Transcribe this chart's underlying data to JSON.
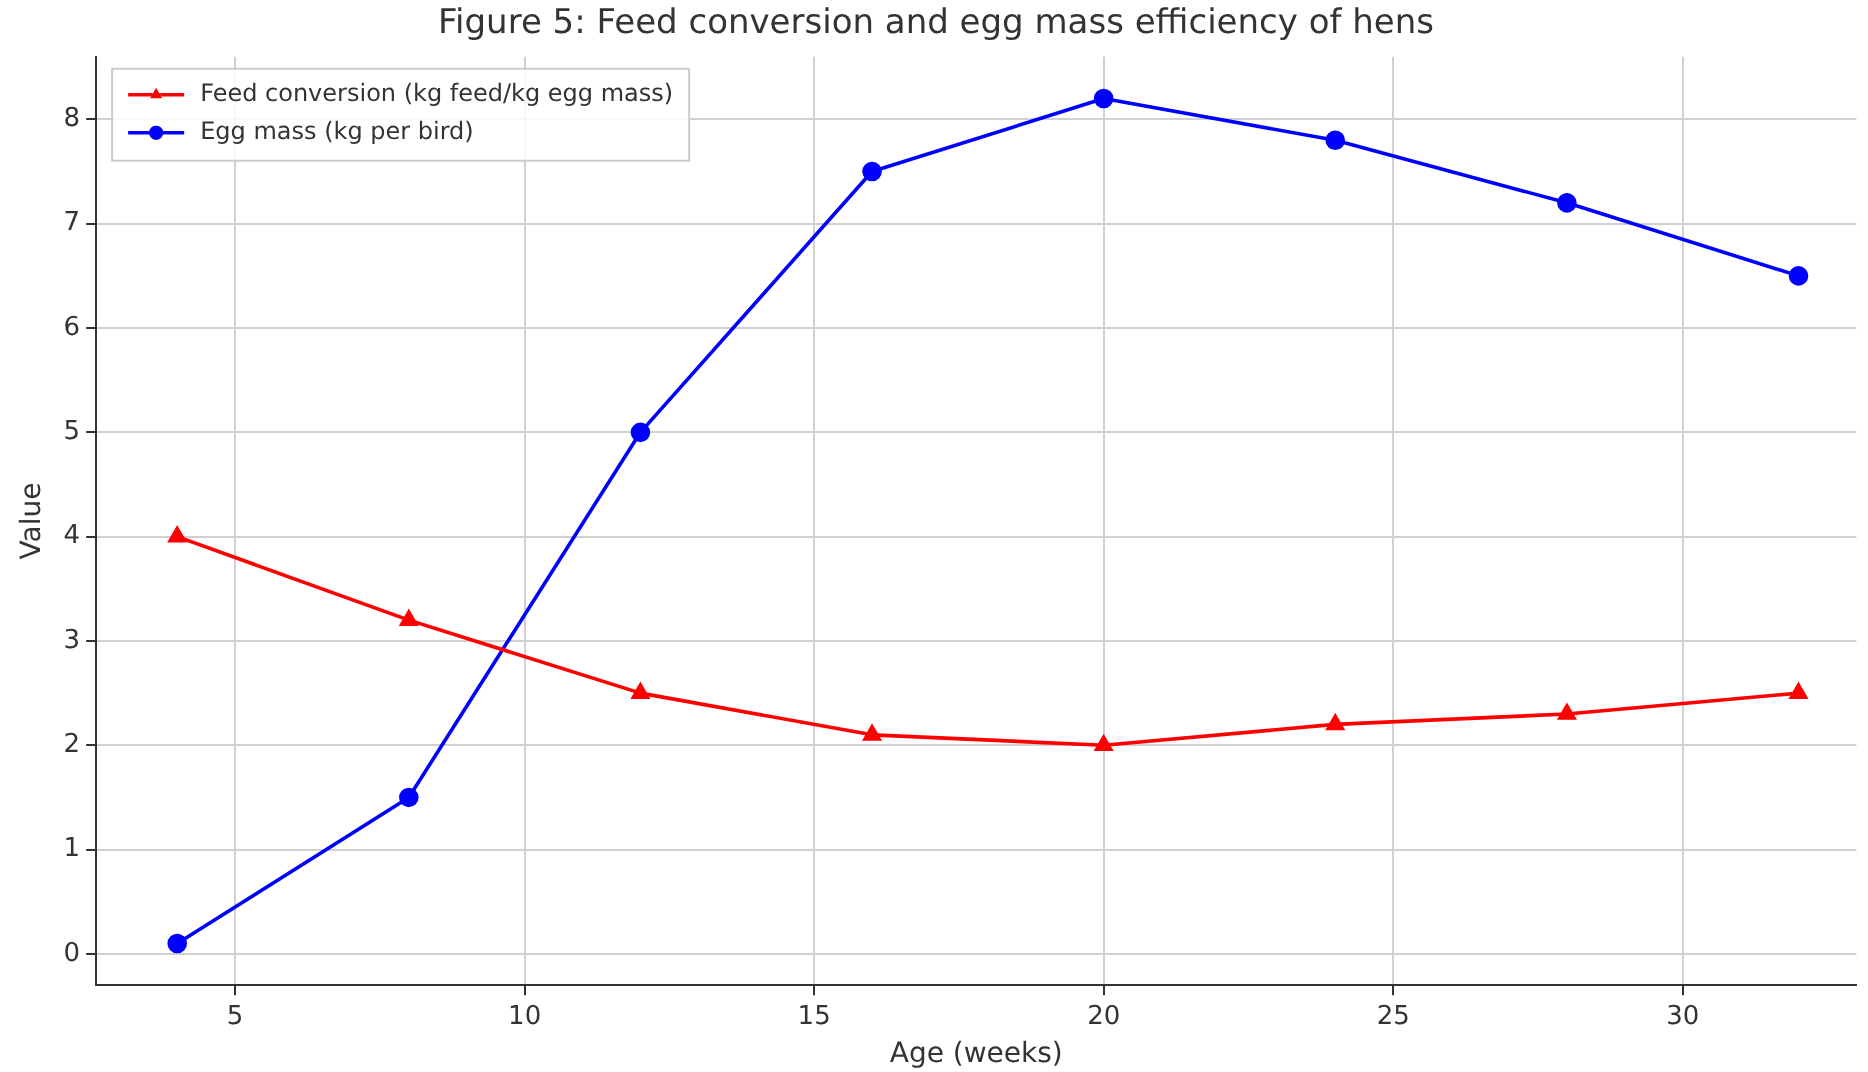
{
  "chart_data": {
    "type": "line",
    "title": "Figure 5: Feed conversion and egg mass efficiency of hens",
    "xlabel": "Age (weeks)",
    "ylabel": "Value",
    "x": [
      4,
      8,
      12,
      16,
      20,
      24,
      28,
      32
    ],
    "series": [
      {
        "name": "Feed conversion (kg feed/kg egg mass)",
        "color": "#ff0000",
        "marker": "triangle",
        "values": [
          4,
          3.2,
          2.5,
          2.1,
          2.0,
          2.2,
          2.3,
          2.5
        ]
      },
      {
        "name": "Egg mass (kg per bird)",
        "color": "#0000ff",
        "marker": "circle",
        "values": [
          0.1,
          1.5,
          5.0,
          7.5,
          8.2,
          7.8,
          7.2,
          6.5
        ]
      }
    ],
    "xlim": [
      2.6,
      33.0
    ],
    "xticks": [
      5,
      10,
      15,
      20,
      25,
      30
    ],
    "ylim": [
      -0.3,
      8.6
    ],
    "yticks": [
      0,
      1,
      2,
      3,
      4,
      5,
      6,
      7,
      8
    ],
    "grid": true,
    "legend": "top left",
    "line_style": "solid"
  }
}
